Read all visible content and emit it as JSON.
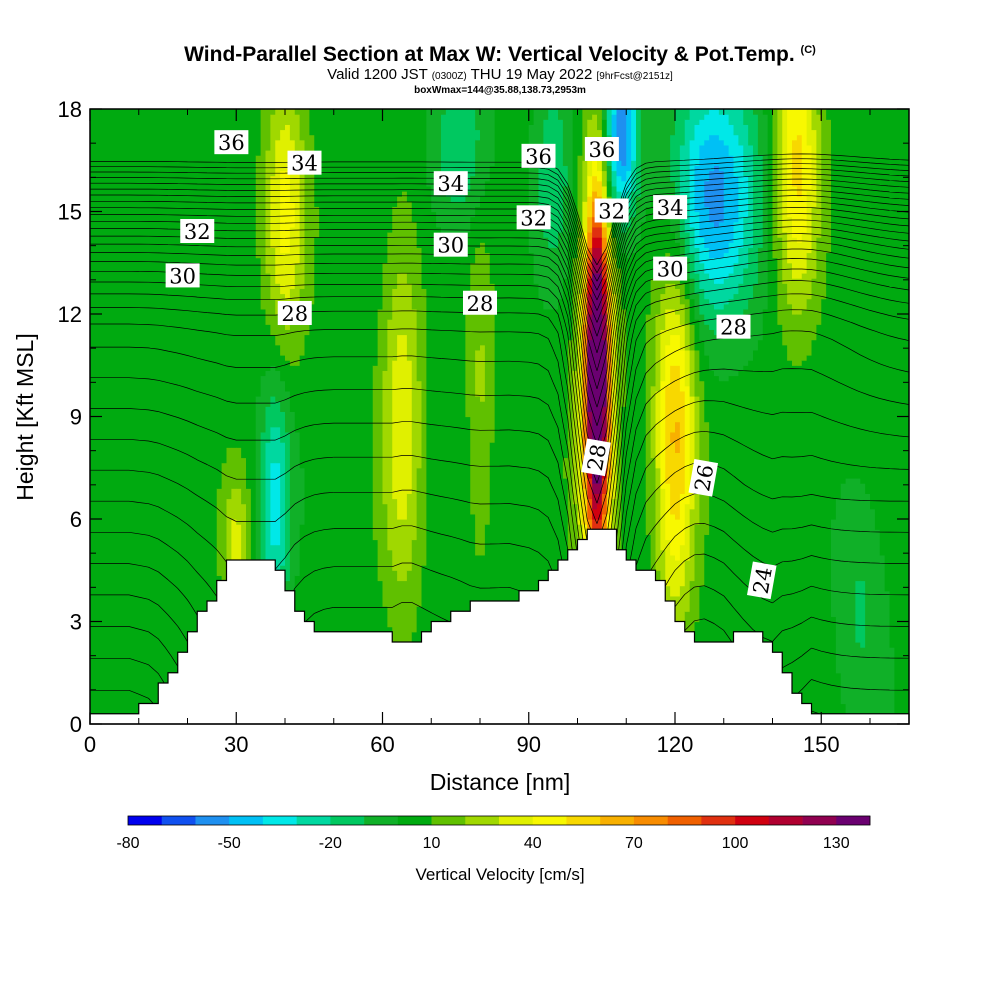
{
  "chart_data": {
    "type": "heatmap",
    "title": "Wind-Parallel Section at Max W: Vertical Velocity & Pot.Temp.",
    "title_mark": "(C)",
    "subtitle_pre": "Valid 1200 JST",
    "subtitle_utc": "(0300Z)",
    "subtitle_date": "THU 19 May 2022",
    "subtitle_fcst": "[9hrFcst@2151z]",
    "subtitle2": "boxWmax=144@35.88,138.73,2953m",
    "xlabel": "Distance [nm]",
    "ylabel": "Height [Kft MSL]",
    "xlim": [
      0,
      168
    ],
    "ylim": [
      0,
      18
    ],
    "xticks": [
      0,
      30,
      60,
      90,
      120,
      150
    ],
    "yticks": [
      0,
      3,
      6,
      9,
      12,
      15,
      18
    ],
    "colorbar": {
      "label": "Vertical Velocity [cm/s]",
      "ticks": [
        -80,
        -50,
        -20,
        10,
        40,
        70,
        100,
        130
      ],
      "levels": [
        -80,
        -70,
        -60,
        -50,
        -40,
        -30,
        -20,
        -10,
        0,
        10,
        20,
        30,
        40,
        50,
        60,
        70,
        80,
        90,
        100,
        110,
        120,
        130,
        140
      ],
      "colors": [
        "#0000ee",
        "#1050f0",
        "#1e90f0",
        "#00c0f5",
        "#00e8e8",
        "#00d8a0",
        "#00c860",
        "#10b028",
        "#00aa10",
        "#60c000",
        "#a0d800",
        "#e0f000",
        "#f8f800",
        "#f8d800",
        "#f8b000",
        "#f88c00",
        "#f06000",
        "#e03010",
        "#d00010",
        "#b00030",
        "#900050",
        "#6a0070"
      ]
    },
    "terrain": [
      [
        0,
        0.3
      ],
      [
        8,
        0.3
      ],
      [
        13,
        0.6
      ],
      [
        16,
        1.3
      ],
      [
        19,
        2.0
      ],
      [
        22,
        2.9
      ],
      [
        26,
        3.9
      ],
      [
        29,
        4.8
      ],
      [
        38,
        4.8
      ],
      [
        40,
        4.3
      ],
      [
        42,
        3.6
      ],
      [
        45,
        2.9
      ],
      [
        49,
        2.6
      ],
      [
        62,
        2.6
      ],
      [
        65,
        2.3
      ],
      [
        68,
        2.6
      ],
      [
        71,
        2.9
      ],
      [
        75,
        3.2
      ],
      [
        79,
        3.6
      ],
      [
        86,
        3.6
      ],
      [
        90,
        3.9
      ],
      [
        93,
        4.3
      ],
      [
        96,
        4.8
      ],
      [
        100,
        5.3
      ],
      [
        103,
        5.8
      ],
      [
        107,
        5.8
      ],
      [
        110,
        4.8
      ],
      [
        113,
        4.6
      ],
      [
        117,
        4.3
      ],
      [
        119,
        3.6
      ],
      [
        122,
        2.9
      ],
      [
        125,
        2.3
      ],
      [
        130,
        2.3
      ],
      [
        133,
        2.6
      ],
      [
        137,
        2.6
      ],
      [
        140,
        2.3
      ],
      [
        142,
        1.6
      ],
      [
        145,
        1.0
      ],
      [
        148,
        0.3
      ],
      [
        168,
        0.3
      ]
    ],
    "velocity_features": [
      {
        "x": 104,
        "y": 10.5,
        "sx": 1.6,
        "sy": 3.3,
        "w": 140
      },
      {
        "x": 104,
        "y": 8.5,
        "sx": 2.8,
        "sy": 5.2,
        "w": 50
      },
      {
        "x": 64,
        "y": 9.0,
        "sx": 3.0,
        "sy": 4.0,
        "w": 32
      },
      {
        "x": 80,
        "y": 9.5,
        "sx": 2.0,
        "sy": 3.5,
        "w": 18
      },
      {
        "x": 120,
        "y": 8.5,
        "sx": 3.0,
        "sy": 3.8,
        "w": 58
      },
      {
        "x": 145,
        "y": 16.5,
        "sx": 3.2,
        "sy": 3.0,
        "w": 48
      },
      {
        "x": 40,
        "y": 15.0,
        "sx": 3.0,
        "sy": 2.8,
        "w": 38
      },
      {
        "x": 30,
        "y": 5.2,
        "sx": 2.0,
        "sy": 1.5,
        "w": 28
      },
      {
        "x": 128,
        "y": 15.5,
        "sx": 6.5,
        "sy": 2.5,
        "w": -55
      },
      {
        "x": 109,
        "y": 17.2,
        "sx": 2.4,
        "sy": 1.8,
        "w": -65
      },
      {
        "x": 38,
        "y": 6.5,
        "sx": 2.2,
        "sy": 2.5,
        "w": -38
      },
      {
        "x": 76,
        "y": 16.8,
        "sx": 4.0,
        "sy": 1.8,
        "w": -25
      },
      {
        "x": 95,
        "y": 16.2,
        "sx": 2.5,
        "sy": 2.0,
        "w": -22
      },
      {
        "x": 158,
        "y": 3.5,
        "sx": 3.5,
        "sy": 2.5,
        "w": -15
      }
    ],
    "theta_contours": {
      "interval": 0.5,
      "min": 21,
      "max": 38,
      "labels": [
        {
          "value": "36",
          "x": 29,
          "y": 17.0
        },
        {
          "value": "34",
          "x": 44,
          "y": 16.4
        },
        {
          "value": "32",
          "x": 22,
          "y": 14.4
        },
        {
          "value": "30",
          "x": 19,
          "y": 13.1
        },
        {
          "value": "28",
          "x": 42,
          "y": 12.0
        },
        {
          "value": "34",
          "x": 74,
          "y": 15.8
        },
        {
          "value": "30",
          "x": 74,
          "y": 14.0
        },
        {
          "value": "28",
          "x": 80,
          "y": 12.3
        },
        {
          "value": "36",
          "x": 92,
          "y": 16.6
        },
        {
          "value": "32",
          "x": 91,
          "y": 14.8
        },
        {
          "value": "36",
          "x": 105,
          "y": 16.8
        },
        {
          "value": "32",
          "x": 107,
          "y": 15.0
        },
        {
          "value": "34",
          "x": 119,
          "y": 15.1
        },
        {
          "value": "30",
          "x": 119,
          "y": 13.3
        },
        {
          "value": "28",
          "x": 132,
          "y": 11.6
        },
        {
          "value": "28",
          "x": 104,
          "y": 7.8
        },
        {
          "value": "26",
          "x": 126,
          "y": 7.2
        },
        {
          "value": "24",
          "x": 138,
          "y": 4.2
        }
      ]
    }
  }
}
